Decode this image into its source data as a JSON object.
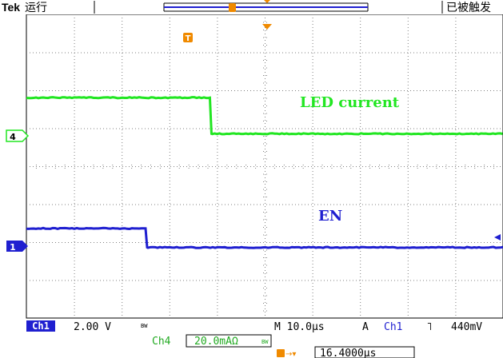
{
  "header": {
    "brand": "Tek",
    "run_state": "运行",
    "trigger_status": "已被触发"
  },
  "markers": {
    "trigger_marker": "T",
    "ch4_marker": "4",
    "ch1_marker": "1"
  },
  "labels": {
    "led_current": "LED current",
    "en": "EN"
  },
  "readout": {
    "ch1_label": "Ch1",
    "ch1_scale": "2.00 V",
    "bw_mark": "BW",
    "ch4_label": "Ch4",
    "ch4_scale": "20.0mAΩ",
    "timebase": "M 10.0µs",
    "trigger_mode": "A",
    "trigger_source": "Ch1",
    "trigger_slope": "˥",
    "trigger_level": "440mV",
    "trigger_position": "16.4000µs"
  },
  "colors": {
    "ch1": "#1f1fd0",
    "ch4": "#22e622",
    "trigger": "#f08a00",
    "grid": "#808080"
  },
  "traces": {
    "led_current": {
      "high_div": 2.1,
      "low_div": 1.15,
      "transition_time_div": 3.85
    },
    "en": {
      "high_div": 0.55,
      "low_div": 0.05,
      "transition_time_div": 2.5
    }
  }
}
